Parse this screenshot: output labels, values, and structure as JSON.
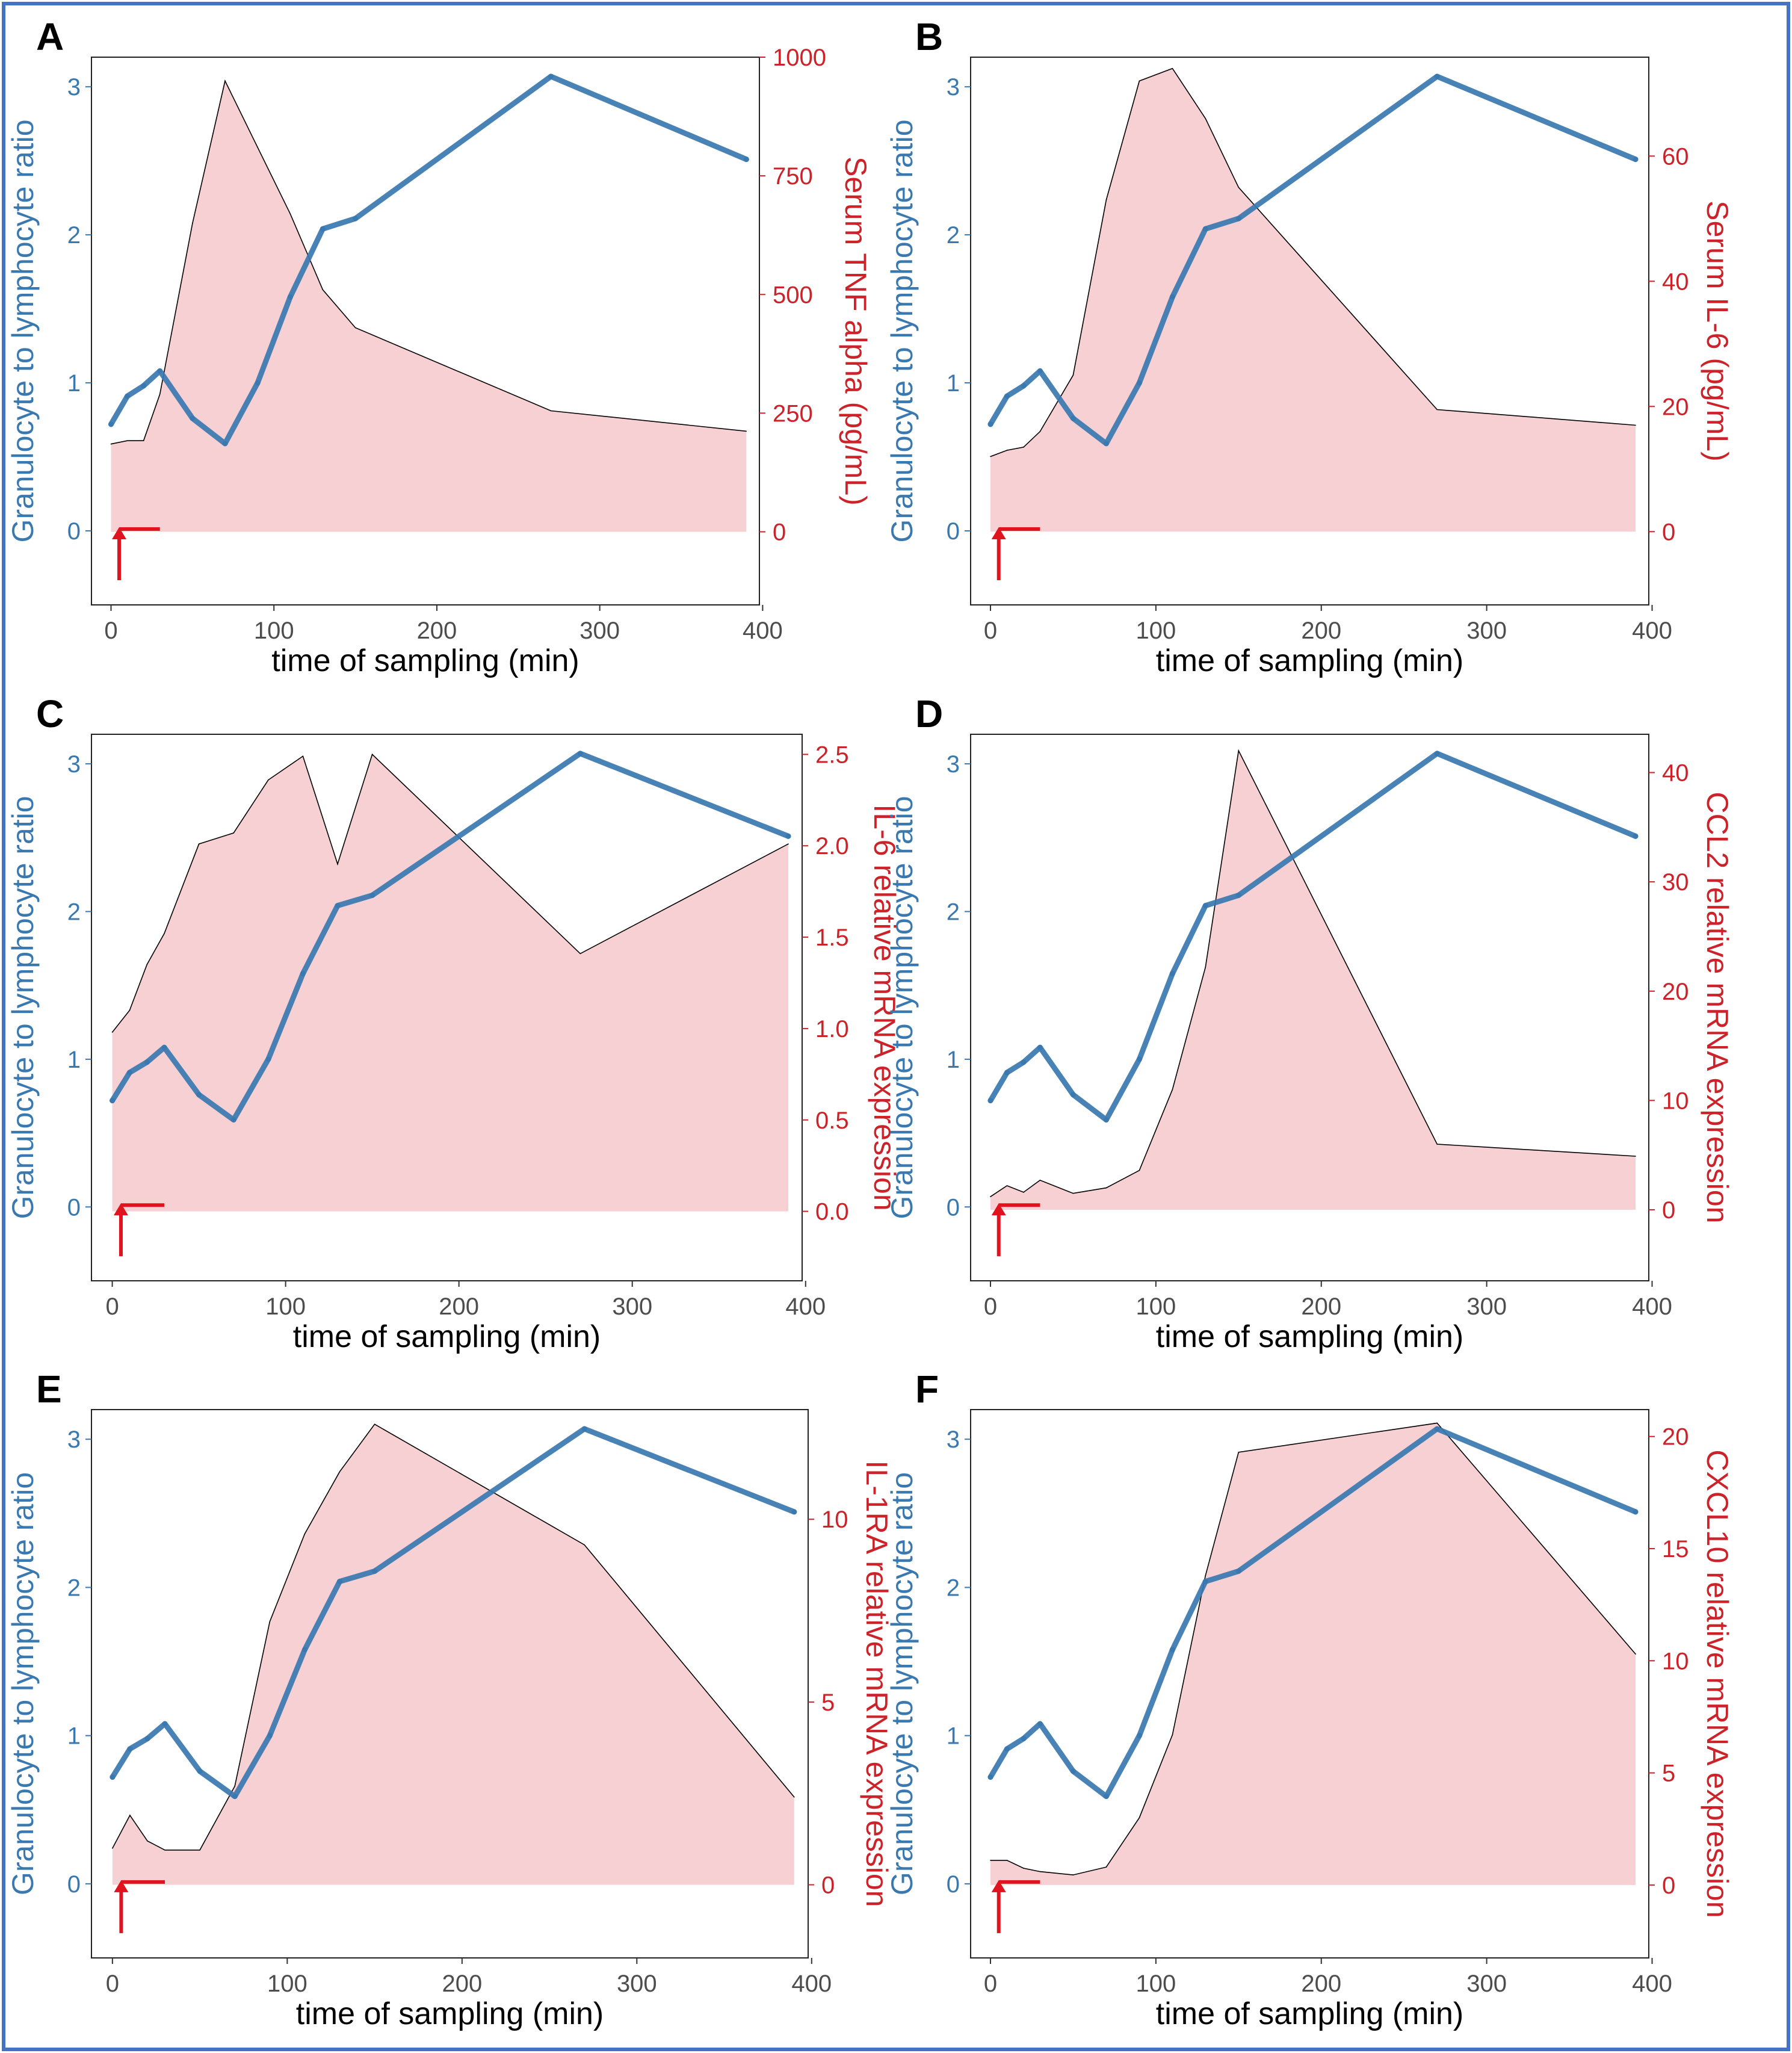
{
  "figure": {
    "border_color": "#4472c4",
    "area_fill": "#f7d0d4",
    "ratio_color": "#3a78b0",
    "right_axis_color": "#cc2229",
    "arrow_color": "#e0141e"
  },
  "chart_data": [
    {
      "type": "area",
      "panel": "A",
      "xlabel": "time of sampling (min)",
      "x_ticks": [
        "0",
        "100",
        "200",
        "300",
        "400"
      ],
      "xlim": [
        -12,
        398
      ],
      "left_axis": {
        "label": "Granulocyte to lymphocyte ratio",
        "ylim": [
          -0.5,
          3.2
        ],
        "ticks": [
          "0",
          "1",
          "2",
          "3"
        ]
      },
      "right_axis": {
        "label": "Serum TNF alpha (pg/mL)",
        "ylim": [
          -154,
          1000
        ],
        "ticks": [
          "0",
          "250",
          "500",
          "750",
          "1000"
        ]
      },
      "area_series": {
        "x": [
          0,
          10,
          20,
          30,
          50,
          70,
          90,
          110,
          130,
          150,
          270,
          390
        ],
        "values": [
          185,
          192,
          192,
          290,
          650,
          950,
          810,
          670,
          510,
          430,
          255,
          212
        ]
      },
      "ratio_series": {
        "x": [
          0,
          10,
          20,
          30,
          50,
          70,
          90,
          110,
          130,
          150,
          270,
          390
        ],
        "values": [
          0.72,
          0.91,
          0.98,
          1.08,
          0.76,
          0.59,
          1.0,
          1.58,
          2.04,
          2.11,
          3.07,
          2.51
        ]
      }
    },
    {
      "type": "area",
      "panel": "B",
      "xlabel": "time of sampling (min)",
      "x_ticks": [
        "0",
        "100",
        "200",
        "300",
        "400"
      ],
      "xlim": [
        -12,
        398
      ],
      "left_axis": {
        "label": "Granulocyte to lymphocyte ratio",
        "ylim": [
          -0.5,
          3.2
        ],
        "ticks": [
          "0",
          "1",
          "2",
          "3"
        ]
      },
      "right_axis": {
        "label": "Serum IL-6 (pg/mL)",
        "ylim": [
          -11.7,
          75.8
        ],
        "ticks": [
          "0",
          "20",
          "40",
          "60"
        ]
      },
      "area_series": {
        "x": [
          0,
          10,
          20,
          30,
          50,
          70,
          90,
          110,
          130,
          150,
          270,
          390
        ],
        "values": [
          12,
          13,
          13.5,
          16,
          25,
          53,
          72,
          74,
          66,
          55,
          19.5,
          17
        ]
      },
      "ratio_series": {
        "x": [
          0,
          10,
          20,
          30,
          50,
          70,
          90,
          110,
          130,
          150,
          270,
          390
        ],
        "values": [
          0.72,
          0.91,
          0.98,
          1.08,
          0.76,
          0.59,
          1.0,
          1.58,
          2.04,
          2.11,
          3.07,
          2.51
        ]
      }
    },
    {
      "type": "area",
      "panel": "C",
      "xlabel": "time of sampling (min)",
      "x_ticks": [
        "0",
        "100",
        "200",
        "300",
        "400"
      ],
      "xlim": [
        -12,
        398
      ],
      "left_axis": {
        "label": "Granulocyte to lymphocyte ratio",
        "ylim": [
          -0.5,
          3.2
        ],
        "ticks": [
          "0",
          "1",
          "2",
          "3"
        ]
      },
      "right_axis": {
        "label": "IL-6 relative mRNA expression",
        "ylim": [
          -0.38,
          2.61
        ],
        "ticks": [
          "0.0",
          "0.5",
          "1.0",
          "1.5",
          "2.0",
          "2.5"
        ]
      },
      "area_series": {
        "x": [
          0,
          10,
          20,
          30,
          50,
          70,
          90,
          110,
          130,
          150,
          270,
          390
        ],
        "values": [
          0.98,
          1.1,
          1.35,
          1.52,
          2.01,
          2.07,
          2.36,
          2.49,
          1.9,
          2.5,
          1.41,
          2.01
        ]
      },
      "ratio_series": {
        "x": [
          0,
          10,
          20,
          30,
          50,
          70,
          90,
          110,
          130,
          150,
          270,
          390
        ],
        "values": [
          0.72,
          0.91,
          0.98,
          1.08,
          0.76,
          0.59,
          1.0,
          1.58,
          2.04,
          2.11,
          3.07,
          2.51
        ]
      }
    },
    {
      "type": "area",
      "panel": "D",
      "xlabel": "time of sampling (min)",
      "x_ticks": [
        "0",
        "100",
        "200",
        "300",
        "400"
      ],
      "xlim": [
        -12,
        398
      ],
      "left_axis": {
        "label": "Granulocyte to lymphocyte ratio",
        "ylim": [
          -0.5,
          3.2
        ],
        "ticks": [
          "0",
          "1",
          "2",
          "3"
        ]
      },
      "right_axis": {
        "label": "CCL2 relative mRNA expression",
        "ylim": [
          -6.5,
          43.5
        ],
        "ticks": [
          "0",
          "10",
          "20",
          "30",
          "40"
        ]
      },
      "area_series": {
        "x": [
          0,
          10,
          20,
          30,
          50,
          70,
          90,
          110,
          130,
          150,
          270,
          390
        ],
        "values": [
          1.2,
          2.2,
          1.6,
          2.7,
          1.5,
          2.0,
          3.6,
          11,
          22.2,
          42,
          6.0,
          4.9
        ]
      },
      "ratio_series": {
        "x": [
          0,
          10,
          20,
          30,
          50,
          70,
          90,
          110,
          130,
          150,
          270,
          390
        ],
        "values": [
          0.72,
          0.91,
          0.98,
          1.08,
          0.76,
          0.59,
          1.0,
          1.58,
          2.04,
          2.11,
          3.07,
          2.51
        ]
      }
    },
    {
      "type": "area",
      "panel": "E",
      "xlabel": "time of sampling (min)",
      "x_ticks": [
        "0",
        "100",
        "200",
        "300",
        "400"
      ],
      "xlim": [
        -12,
        398
      ],
      "left_axis": {
        "label": "Granulocyte to lymphocyte ratio",
        "ylim": [
          -0.5,
          3.2
        ],
        "ticks": [
          "0",
          "1",
          "2",
          "3"
        ]
      },
      "right_axis": {
        "label": "IL-1RA relative mRNA expression",
        "ylim": [
          -2.0,
          13.0
        ],
        "ticks": [
          "0",
          "5",
          "10"
        ]
      },
      "area_series": {
        "x": [
          0,
          10,
          20,
          30,
          50,
          70,
          90,
          110,
          130,
          150,
          270,
          390
        ],
        "values": [
          1.0,
          1.9,
          1.2,
          0.95,
          0.95,
          2.7,
          7.2,
          9.6,
          11.3,
          12.6,
          9.3,
          2.4
        ]
      },
      "ratio_series": {
        "x": [
          0,
          10,
          20,
          30,
          50,
          70,
          90,
          110,
          130,
          150,
          270,
          390
        ],
        "values": [
          0.72,
          0.91,
          0.98,
          1.08,
          0.76,
          0.59,
          1.0,
          1.58,
          2.04,
          2.11,
          3.07,
          2.51
        ]
      }
    },
    {
      "type": "area",
      "panel": "F",
      "xlabel": "time of sampling (min)",
      "x_ticks": [
        "0",
        "100",
        "200",
        "300",
        "400"
      ],
      "xlim": [
        -12,
        398
      ],
      "left_axis": {
        "label": "Granulocyte to lymphocyte ratio",
        "ylim": [
          -0.5,
          3.2
        ],
        "ticks": [
          "0",
          "1",
          "2",
          "3"
        ]
      },
      "right_axis": {
        "label": "CXCL10 relative mRNA expression",
        "ylim": [
          -3.25,
          21.2
        ],
        "ticks": [
          "0",
          "5",
          "10",
          "15",
          "20"
        ]
      },
      "area_series": {
        "x": [
          0,
          10,
          20,
          30,
          50,
          70,
          90,
          110,
          130,
          150,
          270,
          390
        ],
        "values": [
          1.1,
          1.1,
          0.75,
          0.6,
          0.45,
          0.8,
          3.0,
          6.7,
          13.8,
          19.3,
          20.6,
          10.3
        ]
      },
      "ratio_series": {
        "x": [
          0,
          10,
          20,
          30,
          50,
          70,
          90,
          110,
          130,
          150,
          270,
          390
        ],
        "values": [
          0.72,
          0.91,
          0.98,
          1.08,
          0.76,
          0.59,
          1.0,
          1.58,
          2.04,
          2.11,
          3.07,
          2.51
        ]
      }
    }
  ]
}
